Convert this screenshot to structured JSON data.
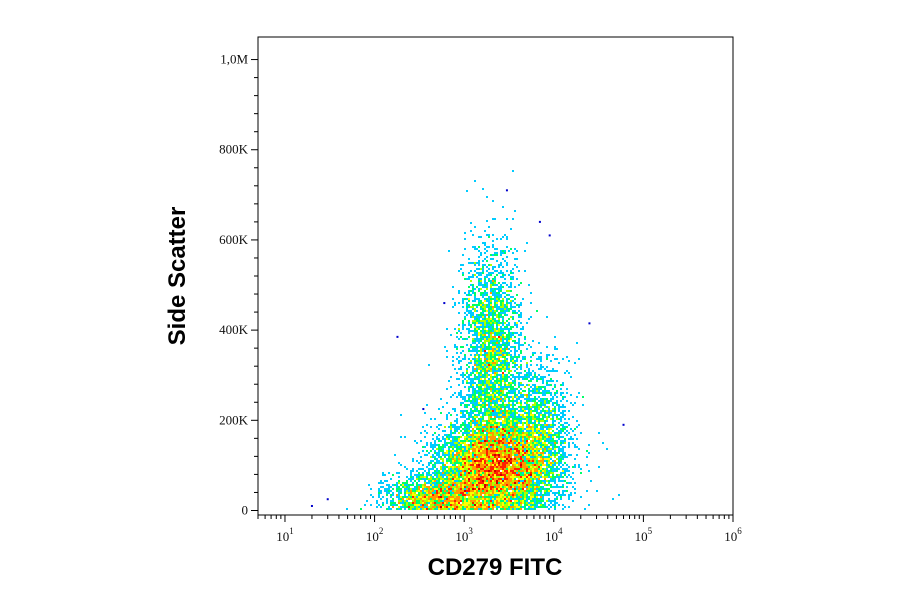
{
  "chart_data": {
    "type": "scatter",
    "style": "density-colored flow cytometry dot plot",
    "xlabel": "CD279 FITC",
    "ylabel": "Side Scatter",
    "x_scale": "log",
    "xlim": [
      5,
      1000000
    ],
    "ylim": [
      -10000,
      1050000
    ],
    "x_ticks": [
      {
        "base": "10",
        "exp": "1",
        "value": 10
      },
      {
        "base": "10",
        "exp": "2",
        "value": 100
      },
      {
        "base": "10",
        "exp": "3",
        "value": 1000
      },
      {
        "base": "10",
        "exp": "4",
        "value": 10000
      },
      {
        "base": "10",
        "exp": "5",
        "value": 100000
      },
      {
        "base": "10",
        "exp": "6",
        "value": 1000000
      }
    ],
    "y_ticks": [
      {
        "label": "0",
        "value": 0
      },
      {
        "label": "200K",
        "value": 200000
      },
      {
        "label": "400K",
        "value": 400000
      },
      {
        "label": "600K",
        "value": 600000
      },
      {
        "label": "800K",
        "value": 800000
      },
      {
        "label": "1,0M",
        "value": 1000000
      }
    ],
    "populations": [
      {
        "name_hint": "main",
        "x_center_log10": 3.35,
        "y_center": 95000,
        "x_sd_log10": 0.33,
        "y_sd": 55000,
        "weight": 0.52
      },
      {
        "name_hint": "high-ssc arm",
        "x_center_log10": 3.3,
        "y_center": 330000,
        "x_sd_log10": 0.17,
        "y_sd": 120000,
        "weight": 0.23
      },
      {
        "name_hint": "low-left tail",
        "x_center_log10": 2.7,
        "y_center": 30000,
        "x_sd_log10": 0.3,
        "y_sd": 25000,
        "weight": 0.14
      },
      {
        "name_hint": "right shoulder",
        "x_center_log10": 3.8,
        "y_center": 180000,
        "x_sd_log10": 0.2,
        "y_sd": 80000,
        "weight": 0.11
      }
    ],
    "outliers": [
      {
        "x": 3000,
        "y": 710000
      },
      {
        "x": 600,
        "y": 460000
      },
      {
        "x": 180,
        "y": 385000
      },
      {
        "x": 350,
        "y": 225000
      },
      {
        "x": 60000,
        "y": 190000
      },
      {
        "x": 25000,
        "y": 415000
      },
      {
        "x": 7000,
        "y": 640000
      },
      {
        "x": 9000,
        "y": 610000
      },
      {
        "x": 20,
        "y": 10000
      },
      {
        "x": 30,
        "y": 25000
      }
    ],
    "density_colors": [
      "#0000cc",
      "#0066ff",
      "#00ccff",
      "#00ff66",
      "#aaff00",
      "#ffff00",
      "#ff9900",
      "#ff2200",
      "#cc0000"
    ],
    "grid": false,
    "legend": "none"
  }
}
